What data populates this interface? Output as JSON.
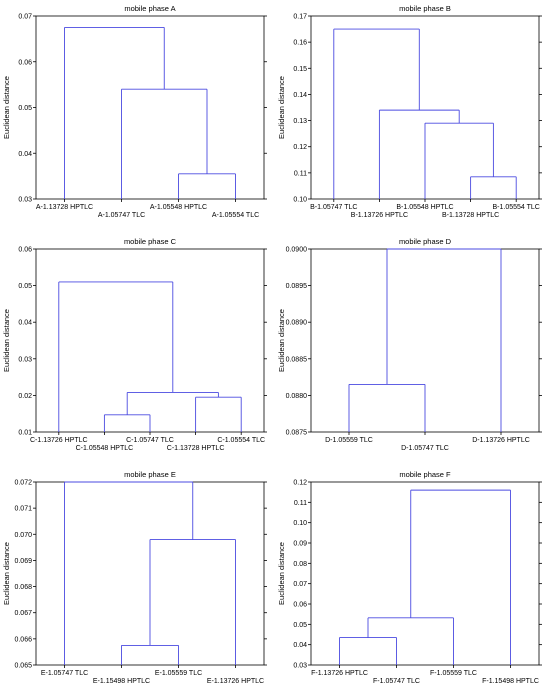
{
  "chart_data": [
    {
      "type": "dendrogram",
      "title": "mobile phase A",
      "ylabel": "Euclidean distance",
      "ylim": [
        0.03,
        0.07
      ],
      "yticks": [
        "0.03",
        "0.04",
        "0.05",
        "0.06",
        "0.07"
      ],
      "leaves": [
        "A-1.13728 HPTLC",
        "A-1.05747 TLC",
        "A-1.05548 HPTLC",
        "A-1.05554 TLC"
      ],
      "merges": [
        {
          "left": 2,
          "right": 3,
          "height": 0.0355
        },
        {
          "left": 1,
          "right": 4,
          "height": 0.054
        },
        {
          "left": 0,
          "right": 5,
          "height": 0.0675
        }
      ]
    },
    {
      "type": "dendrogram",
      "title": "mobile phase B",
      "ylabel": "Euclidean distance",
      "ylim": [
        0.1,
        0.17
      ],
      "yticks": [
        "0.10",
        "0.11",
        "0.12",
        "0.13",
        "0.14",
        "0.15",
        "0.16",
        "0.17"
      ],
      "leaves": [
        "B-1.05747 TLC",
        "B-1.13726 HPTLC",
        "B-1.05548 HPTLC",
        "B-1.13728 HPTLC",
        "B-1.05554 TLC"
      ],
      "merges": [
        {
          "left": 3,
          "right": 4,
          "height": 0.1085
        },
        {
          "left": 2,
          "right": 5,
          "height": 0.129
        },
        {
          "left": 1,
          "right": 6,
          "height": 0.134
        },
        {
          "left": 0,
          "right": 7,
          "height": 0.165
        }
      ]
    },
    {
      "type": "dendrogram",
      "title": "mobile phase C",
      "ylabel": "Euclidean distance",
      "ylim": [
        0.01,
        0.06
      ],
      "yticks": [
        "0.01",
        "0.02",
        "0.03",
        "0.04",
        "0.05",
        "0.06"
      ],
      "leaves": [
        "C-1.13726 HPTLC",
        "C-1.05548 HPTLC",
        "C-1.05747 TLC",
        "C-1.13728 HPTLC",
        "C-1.05554 TLC"
      ],
      "merges": [
        {
          "left": 1,
          "right": 2,
          "height": 0.0147
        },
        {
          "left": 3,
          "right": 4,
          "height": 0.0195
        },
        {
          "left": 5,
          "right": 6,
          "height": 0.0208
        },
        {
          "left": 0,
          "right": 7,
          "height": 0.051
        }
      ]
    },
    {
      "type": "dendrogram",
      "title": "mobile phase D",
      "ylabel": "Euclidean distance",
      "ylim": [
        0.0875,
        0.09
      ],
      "yticks": [
        "0.0875",
        "0.0880",
        "0.0885",
        "0.0890",
        "0.0895",
        "0.0900"
      ],
      "leaves": [
        "D-1.05559 TLC",
        "D-1.05747 TLC",
        "D-1.13726 HPTLC"
      ],
      "merges": [
        {
          "left": 0,
          "right": 1,
          "height": 0.08815
        },
        {
          "left": 3,
          "right": 2,
          "height": 0.09
        }
      ]
    },
    {
      "type": "dendrogram",
      "title": "mobile phase E",
      "ylabel": "Euclidean distance",
      "ylim": [
        0.065,
        0.072
      ],
      "yticks": [
        "0.065",
        "0.066",
        "0.067",
        "0.068",
        "0.069",
        "0.070",
        "0.071",
        "0.072"
      ],
      "leaves": [
        "E-1.05747 TLC",
        "E-1.15498 HPTLC",
        "E-1.05559 TLC",
        "E-1.13726 HPTLC"
      ],
      "merges": [
        {
          "left": 1,
          "right": 2,
          "height": 0.06575
        },
        {
          "left": 4,
          "right": 3,
          "height": 0.0698
        },
        {
          "left": 0,
          "right": 5,
          "height": 0.072
        }
      ]
    },
    {
      "type": "dendrogram",
      "title": "mobile phase F",
      "ylabel": "Euclidean distance",
      "ylim": [
        0.03,
        0.12
      ],
      "yticks": [
        "0.03",
        "0.04",
        "0.05",
        "0.06",
        "0.07",
        "0.08",
        "0.09",
        "0.10",
        "0.11",
        "0.12"
      ],
      "leaves": [
        "F-1.13726 HPTLC",
        "F-1.05747 TLC",
        "F-1.05559 TLC",
        "F-1.15498 HPTLC"
      ],
      "merges": [
        {
          "left": 0,
          "right": 1,
          "height": 0.0435
        },
        {
          "left": 4,
          "right": 2,
          "height": 0.0532
        },
        {
          "left": 5,
          "right": 3,
          "height": 0.116
        }
      ]
    }
  ],
  "colors": {
    "tree_line": "#4a4ae0",
    "axis": "#000000"
  }
}
